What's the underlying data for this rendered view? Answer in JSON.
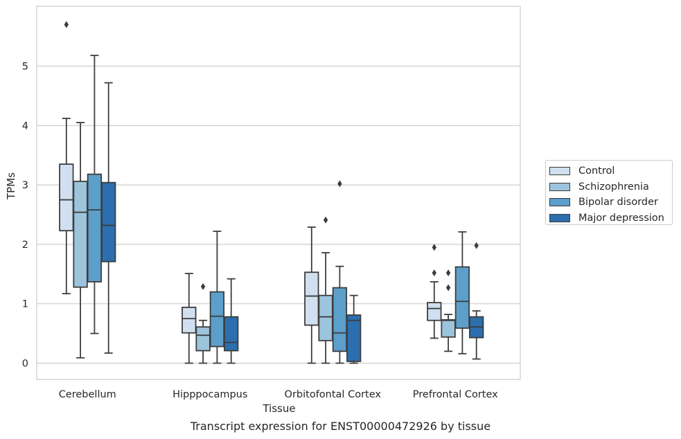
{
  "caption": "Transcript expression for ENST00000472926 by tissue",
  "chart_data": {
    "type": "box",
    "xlabel": "Tissue",
    "ylabel": "TPMs",
    "ylim": [
      -0.28,
      6.0
    ],
    "yticks": [
      0,
      1,
      2,
      3,
      4,
      5
    ],
    "grid": "horizontal",
    "legend_position": "right",
    "categories": [
      "Cerebellum",
      "Hipppocampus",
      "Orbitofontal Cortex",
      "Prefrontal Cortex"
    ],
    "series": [
      {
        "name": "Control",
        "color": "#d0e0f0",
        "boxes": [
          {
            "whisker_low": 1.17,
            "q1": 2.23,
            "median": 2.75,
            "q3": 3.35,
            "whisker_high": 4.12,
            "outliers": [
              5.7
            ]
          },
          {
            "whisker_low": 0.0,
            "q1": 0.51,
            "median": 0.75,
            "q3": 0.94,
            "whisker_high": 1.51,
            "outliers": []
          },
          {
            "whisker_low": 0.0,
            "q1": 0.64,
            "median": 1.13,
            "q3": 1.53,
            "whisker_high": 2.29,
            "outliers": []
          },
          {
            "whisker_low": 0.42,
            "q1": 0.72,
            "median": 0.92,
            "q3": 1.02,
            "whisker_high": 1.37,
            "outliers": [
              1.52,
              1.95
            ]
          }
        ]
      },
      {
        "name": "Schizophrenia",
        "color": "#9dc4dd",
        "boxes": [
          {
            "whisker_low": 0.09,
            "q1": 1.28,
            "median": 2.54,
            "q3": 3.06,
            "whisker_high": 4.05,
            "outliers": []
          },
          {
            "whisker_low": 0.0,
            "q1": 0.21,
            "median": 0.47,
            "q3": 0.61,
            "whisker_high": 0.72,
            "outliers": [
              1.29
            ]
          },
          {
            "whisker_low": 0.0,
            "q1": 0.38,
            "median": 0.78,
            "q3": 1.14,
            "whisker_high": 1.86,
            "outliers": [
              2.41
            ]
          },
          {
            "whisker_low": 0.2,
            "q1": 0.44,
            "median": 0.72,
            "q3": 0.73,
            "whisker_high": 0.82,
            "outliers": [
              1.27,
              1.52
            ]
          }
        ]
      },
      {
        "name": "Bipolar disorder",
        "color": "#5c9fcb",
        "boxes": [
          {
            "whisker_low": 0.5,
            "q1": 1.37,
            "median": 2.58,
            "q3": 3.18,
            "whisker_high": 5.18,
            "outliers": []
          },
          {
            "whisker_low": 0.0,
            "q1": 0.28,
            "median": 0.79,
            "q3": 1.2,
            "whisker_high": 2.22,
            "outliers": []
          },
          {
            "whisker_low": 0.0,
            "q1": 0.2,
            "median": 0.51,
            "q3": 1.27,
            "whisker_high": 1.63,
            "outliers": [
              3.02
            ]
          },
          {
            "whisker_low": 0.16,
            "q1": 0.59,
            "median": 1.04,
            "q3": 1.62,
            "whisker_high": 2.21,
            "outliers": []
          }
        ]
      },
      {
        "name": "Major depression",
        "color": "#2c6eae",
        "boxes": [
          {
            "whisker_low": 0.17,
            "q1": 1.71,
            "median": 2.32,
            "q3": 3.04,
            "whisker_high": 4.72,
            "outliers": []
          },
          {
            "whisker_low": 0.0,
            "q1": 0.21,
            "median": 0.35,
            "q3": 0.78,
            "whisker_high": 1.42,
            "outliers": []
          },
          {
            "whisker_low": 0.0,
            "q1": 0.03,
            "median": 0.72,
            "q3": 0.81,
            "whisker_high": 1.14,
            "outliers": []
          },
          {
            "whisker_low": 0.07,
            "q1": 0.43,
            "median": 0.61,
            "q3": 0.78,
            "whisker_high": 0.88,
            "outliers": [
              1.98
            ]
          }
        ]
      }
    ]
  }
}
